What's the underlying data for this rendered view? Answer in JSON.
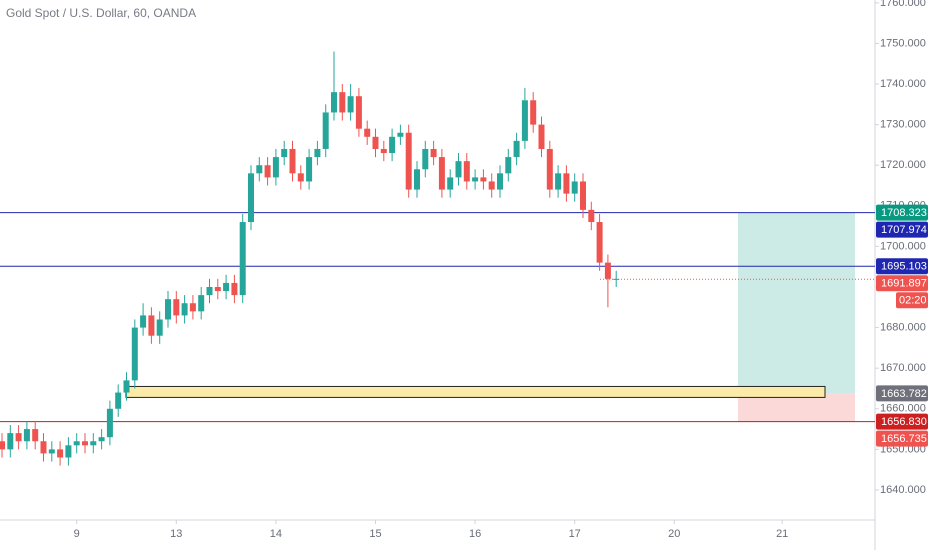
{
  "chart_data": {
    "type": "candlestick",
    "title": "Gold Spot / U.S. Dollar, 60, OANDA",
    "categories": [
      null,
      null,
      null,
      null,
      null,
      null,
      null,
      null,
      null,
      "9",
      null,
      null,
      null,
      null,
      null,
      null,
      null,
      null,
      null,
      null,
      null,
      "13",
      null,
      null,
      null,
      null,
      null,
      null,
      null,
      null,
      null,
      null,
      null,
      "14",
      null,
      null,
      null,
      null,
      null,
      null,
      null,
      null,
      null,
      null,
      null,
      "15",
      null,
      null,
      null,
      null,
      null,
      null,
      null,
      null,
      null,
      null,
      null,
      "16",
      null,
      null,
      null,
      null,
      null,
      null,
      null,
      null,
      null,
      null,
      null,
      "17",
      null,
      null,
      null,
      null,
      null,
      null,
      null,
      null,
      null,
      null,
      null,
      "20",
      null,
      null,
      null,
      null,
      null,
      null,
      null,
      null,
      null,
      null,
      null,
      null,
      "21"
    ],
    "open": [
      1652,
      1650,
      1654,
      1652,
      1655,
      1652,
      1649,
      1650,
      1648,
      1651,
      1652,
      1651,
      1652,
      1653,
      1660,
      1664,
      1667,
      1680,
      1683,
      1678,
      1682,
      1687,
      1683,
      1686,
      1684,
      1688,
      1690,
      1689,
      1691,
      1688,
      1706,
      1718,
      1720,
      1717,
      1722,
      1724,
      1718,
      1716,
      1722,
      1724,
      1733,
      1738,
      1733,
      1737,
      1729,
      1727,
      1724,
      1723,
      1727,
      1728,
      1714,
      1719,
      1724,
      1722,
      1714,
      1717,
      1721,
      1716,
      1717,
      1716,
      1714,
      1718,
      1722,
      1726,
      1736,
      1730,
      1724,
      1714,
      1718,
      1713,
      1716,
      1709,
      1706,
      1696,
      1692,
      null,
      null,
      null,
      null,
      null,
      null,
      null,
      null,
      null,
      null,
      null,
      null,
      null,
      null,
      null,
      null,
      null,
      null,
      null,
      null
    ],
    "high": [
      1654,
      1656,
      1656,
      1657,
      1657,
      1654,
      1652,
      1652,
      1653,
      1654,
      1654,
      1654,
      1655,
      1662,
      1666,
      1669,
      1682,
      1686,
      1685,
      1684,
      1689,
      1689,
      1688,
      1688,
      1690,
      1692,
      1692,
      1693,
      1693,
      1708,
      1720,
      1722,
      1722,
      1724,
      1726,
      1726,
      1720,
      1724,
      1726,
      1735,
      1748,
      1740,
      1740,
      1739,
      1731,
      1729,
      1726,
      1729,
      1730,
      1730,
      1721,
      1726,
      1726,
      1724,
      1719,
      1723,
      1723,
      1719,
      1719,
      1718,
      1720,
      1724,
      1728,
      1739,
      1738,
      1732,
      1726,
      1720,
      1720,
      1718,
      1718,
      1711,
      1708,
      1698,
      1694,
      null,
      null,
      null,
      null,
      null,
      null,
      null,
      null,
      null,
      null,
      null,
      null,
      null,
      null,
      null,
      null,
      null,
      null,
      null,
      null
    ],
    "low": [
      1648,
      1648,
      1650,
      1650,
      1650,
      1647,
      1647,
      1646,
      1646,
      1649,
      1649,
      1649,
      1650,
      1651,
      1658,
      1662,
      1665,
      1678,
      1676,
      1676,
      1680,
      1681,
      1681,
      1682,
      1682,
      1686,
      1687,
      1687,
      1686,
      1686,
      1704,
      1716,
      1715,
      1715,
      1720,
      1716,
      1714,
      1714,
      1720,
      1722,
      1731,
      1731,
      1731,
      1727,
      1725,
      1722,
      1721,
      1721,
      1725,
      1712,
      1712,
      1717,
      1720,
      1712,
      1712,
      1715,
      1714,
      1714,
      1714,
      1712,
      1712,
      1716,
      1720,
      1724,
      1728,
      1722,
      1712,
      1712,
      1711,
      1711,
      1707,
      1704,
      1694,
      1685,
      1690,
      null,
      null,
      null,
      null,
      null,
      null,
      null,
      null,
      null,
      null,
      null,
      null,
      null,
      null,
      null,
      null,
      null,
      null,
      null,
      null
    ],
    "close": [
      1650,
      1654,
      1652,
      1655,
      1652,
      1649,
      1650,
      1648,
      1651,
      1652,
      1651,
      1652,
      1653,
      1660,
      1664,
      1667,
      1680,
      1683,
      1678,
      1682,
      1687,
      1683,
      1686,
      1684,
      1688,
      1690,
      1689,
      1691,
      1688,
      1706,
      1718,
      1720,
      1717,
      1722,
      1724,
      1718,
      1716,
      1722,
      1724,
      1733,
      1738,
      1733,
      1737,
      1729,
      1727,
      1724,
      1723,
      1727,
      1728,
      1714,
      1719,
      1724,
      1722,
      1714,
      1717,
      1721,
      1716,
      1717,
      1716,
      1714,
      1718,
      1722,
      1726,
      1736,
      1730,
      1724,
      1714,
      1718,
      1713,
      1716,
      1709,
      1706,
      1696,
      1692,
      1692,
      null,
      null,
      null,
      null,
      null,
      null,
      null,
      null,
      null,
      null,
      null,
      null,
      null,
      null,
      null,
      null,
      null,
      null,
      null,
      null
    ],
    "up_color": "#26a69a",
    "down_color": "#ef5350",
    "ylim": [
      1632.6,
      1760.7
    ],
    "yticks": [
      {
        "value": 1640,
        "label": "1640.000"
      },
      {
        "value": 1650,
        "label": "1650.000"
      },
      {
        "value": 1660,
        "label": "1660.000"
      },
      {
        "value": 1670,
        "label": "1670.000"
      },
      {
        "value": 1680,
        "label": "1680.000"
      },
      {
        "value": 1690,
        "label": "1690.000"
      },
      {
        "value": 1700,
        "label": "1700.000"
      },
      {
        "value": 1710,
        "label": "1710.000"
      },
      {
        "value": 1720,
        "label": "1720.000"
      },
      {
        "value": 1730,
        "label": "1730.000"
      },
      {
        "value": 1740,
        "label": "1740.000"
      },
      {
        "value": 1750,
        "label": "1750.000"
      },
      {
        "value": 1760,
        "label": "1760.000"
      }
    ],
    "levels": [
      {
        "value": 1708.323,
        "color": "#1f27b0",
        "style": "solid"
      },
      {
        "value": 1695.103,
        "color": "#1f27b0",
        "style": "solid"
      },
      {
        "value": 1656.83,
        "color": "#b22222",
        "style": "solid"
      },
      {
        "value": 1691.897,
        "color": "#ef5350",
        "style": "dotted"
      }
    ],
    "zone": {
      "top": 1665.5,
      "bottom": 1662.8,
      "color": "#fbeaa8"
    },
    "position": {
      "target": 1708.323,
      "entry": 1663.782,
      "stop": 1656.83,
      "profit_color": "#cdebe6",
      "loss_color": "#fbd9d9"
    },
    "price_labels": [
      {
        "value": 1708.323,
        "label": "1708.323",
        "color": "#089981"
      },
      {
        "value": 1707.974,
        "label": "1707.974",
        "color": "#1f27b0"
      },
      {
        "value": 1695.103,
        "label": "1695.103",
        "color": "#1f27b0"
      },
      {
        "value": 1691.897,
        "label": "1691.897",
        "color": "#ef5350"
      },
      {
        "value": 1663.782,
        "label": "1663.782",
        "color": "#6e7179"
      },
      {
        "value": 1656.83,
        "label": "1656.830",
        "color": "#cc1f1f"
      },
      {
        "value": 1656.735,
        "label": "1656.735",
        "color": "#ef5350"
      }
    ],
    "countdown": "02:20"
  }
}
